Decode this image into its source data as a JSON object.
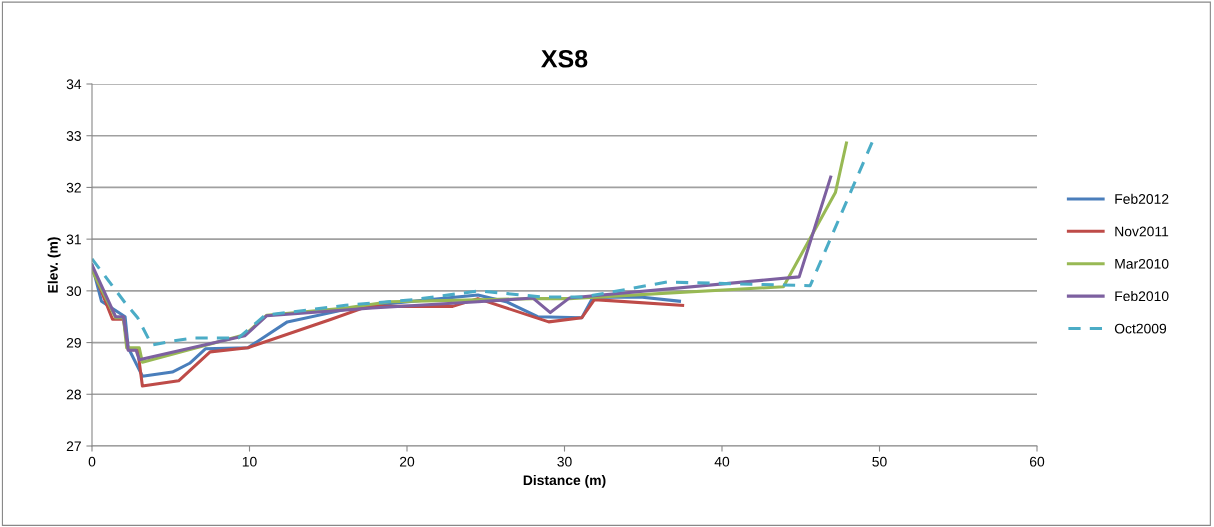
{
  "chart_data": {
    "type": "line",
    "title": "XS8",
    "xlabel": "Distance (m)",
    "ylabel": "Elev. (m)",
    "xlim": [
      0,
      60
    ],
    "xticks": [
      0,
      10,
      20,
      30,
      40,
      50,
      60
    ],
    "ylim": [
      27,
      34
    ],
    "yticks": [
      27,
      28,
      29,
      30,
      31,
      32,
      33,
      34
    ],
    "grid": "y",
    "legend": "right",
    "marker": "none",
    "series": [
      {
        "name": "Feb2012",
        "color": "#4a7ebb",
        "line_style": "solid",
        "x": [
          0,
          0.6,
          2.1,
          2.3,
          3.2,
          5.1,
          6.2,
          7.2,
          9.9,
          12.4,
          17,
          24.5,
          26.3,
          28.3,
          31.1,
          31.8,
          34.8,
          37.3
        ],
        "values": [
          30.5,
          29.8,
          29.5,
          28.9,
          28.35,
          28.43,
          28.6,
          28.88,
          28.9,
          29.4,
          29.7,
          29.92,
          29.79,
          29.5,
          29.48,
          29.87,
          29.88,
          29.8
        ]
      },
      {
        "name": "Nov2011",
        "color": "#be4b48",
        "line_style": "solid",
        "x": [
          0,
          1.3,
          2.0,
          2.3,
          2.9,
          3.2,
          5.5,
          7.5,
          9.9,
          15.1,
          17.5,
          22.9,
          24.5,
          29.0,
          31.1,
          31.9,
          37.5
        ],
        "values": [
          30.45,
          29.45,
          29.45,
          28.86,
          28.86,
          28.16,
          28.26,
          28.82,
          28.9,
          29.44,
          29.7,
          29.7,
          29.85,
          29.4,
          29.48,
          29.83,
          29.72
        ]
      },
      {
        "name": "Mar2010",
        "color": "#98b954",
        "line_style": "solid",
        "x": [
          0,
          1.5,
          2.0,
          2.2,
          3.0,
          3.2,
          9.7,
          11.1,
          16.1,
          18.9,
          28.0,
          30.3,
          43.9,
          47.2,
          47.9
        ],
        "values": [
          30.4,
          29.48,
          29.48,
          28.9,
          28.9,
          28.62,
          29.15,
          29.53,
          29.67,
          29.79,
          29.85,
          29.85,
          30.08,
          31.9,
          32.86
        ]
      },
      {
        "name": "Feb2010",
        "color": "#7d60a0",
        "line_style": "solid",
        "x": [
          0,
          1.5,
          2.0,
          2.3,
          2.8,
          3.0,
          9.7,
          11.1,
          16.1,
          17.8,
          24.5,
          28.0,
          29.1,
          30.3,
          44.9,
          46.9
        ],
        "values": [
          30.5,
          29.5,
          29.5,
          28.85,
          28.85,
          28.67,
          29.13,
          29.52,
          29.63,
          29.67,
          29.79,
          29.86,
          29.58,
          29.86,
          30.27,
          32.2
        ]
      },
      {
        "name": "Oct2009",
        "color": "#4bacc6",
        "line_style": "dashed",
        "x": [
          0,
          2.1,
          2.9,
          3.8,
          5.1,
          6.5,
          9.3,
          11.0,
          16.1,
          20.4,
          24.6,
          28.6,
          31.2,
          35.4,
          36.5,
          45.6,
          49.6
        ],
        "values": [
          30.62,
          29.77,
          29.48,
          28.95,
          29.03,
          29.09,
          29.09,
          29.53,
          29.72,
          29.83,
          30.0,
          29.88,
          29.88,
          30.11,
          30.17,
          30.1,
          32.92
        ]
      }
    ]
  }
}
